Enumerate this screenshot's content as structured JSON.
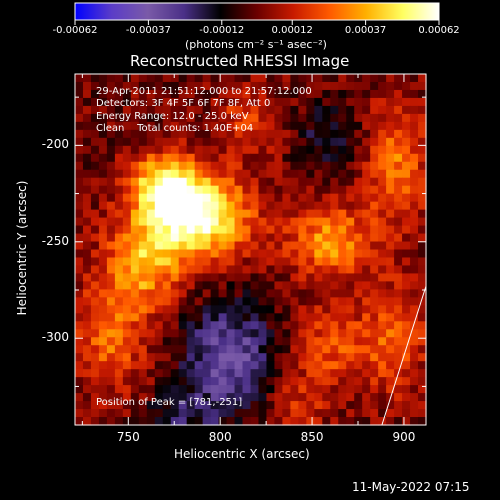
{
  "colorbar": {
    "tick_labels": [
      "-0.00062",
      "-0.00037",
      "-0.00012",
      "0.00012",
      "0.00037",
      "0.00062"
    ],
    "tick_values": [
      -0.00062,
      -0.00037,
      -0.00012,
      0.00012,
      0.00037,
      0.00062
    ],
    "unit_label": "(photons cm⁻² s⁻¹ asec⁻²)",
    "colors": [
      "#0000ff",
      "#5a3cc8",
      "#7a5aa8",
      "#4a2f87",
      "#000000",
      "#6b0000",
      "#c81a00",
      "#ff5a00",
      "#ffb000",
      "#ffff60",
      "#ffffff"
    ]
  },
  "chart_data": {
    "type": "heatmap",
    "title": "Reconstructed RHESSI Image",
    "xlabel": "Heliocentric X (arcsec)",
    "ylabel": "Heliocentric Y (arcsec)",
    "xlim": [
      721,
      912
    ],
    "ylim": [
      -345,
      -163
    ],
    "x_ticks": [
      750,
      800,
      850,
      900
    ],
    "y_ticks": [
      -200,
      -250,
      -300
    ],
    "x_tick_labels": [
      "750",
      "800",
      "850",
      "900"
    ],
    "y_tick_labels": [
      "-200",
      "-250",
      "-300"
    ],
    "annotations": [
      "29-Apr-2011 21:51:12.000 to 21:57:12.000",
      "Detectors: 3F 4F 5F 6F 7F 8F, Att 0",
      "Energy Range: 12.0 - 25.0 keV",
      "Clean    Total counts: 1.40E+04"
    ],
    "peak_label": "Position of Peak = [781,-251]",
    "peak": [
      781,
      -251
    ],
    "limb_line": [
      [
        888,
        -345
      ],
      [
        912,
        -273
      ]
    ],
    "sources": [
      {
        "x": 787,
        "y": -237,
        "sx": 20,
        "sy": 15,
        "a": 1.0
      },
      {
        "x": 770,
        "y": -220,
        "sx": 13,
        "sy": 11,
        "a": 0.7
      },
      {
        "x": 758,
        "y": -262,
        "sx": 15,
        "sy": 16,
        "a": 0.55
      },
      {
        "x": 740,
        "y": -300,
        "sx": 15,
        "sy": 20,
        "a": 0.4
      },
      {
        "x": 815,
        "y": -188,
        "sx": 12,
        "sy": 12,
        "a": 0.3
      },
      {
        "x": 860,
        "y": -250,
        "sx": 16,
        "sy": 13,
        "a": 0.55
      },
      {
        "x": 895,
        "y": -210,
        "sx": 12,
        "sy": 22,
        "a": 0.45
      },
      {
        "x": 860,
        "y": -305,
        "sx": 15,
        "sy": 15,
        "a": 0.35
      },
      {
        "x": 840,
        "y": -335,
        "sx": 12,
        "sy": 10,
        "a": 0.25
      },
      {
        "x": 895,
        "y": -300,
        "sx": 12,
        "sy": 20,
        "a": 0.4
      },
      {
        "x": 805,
        "y": -310,
        "sx": 18,
        "sy": 20,
        "a": -0.55
      },
      {
        "x": 860,
        "y": -195,
        "sx": 12,
        "sy": 12,
        "a": -0.3
      },
      {
        "x": 780,
        "y": -340,
        "sx": 15,
        "sy": 10,
        "a": -0.25
      }
    ]
  },
  "footer": {
    "timestamp": "11-May-2022 07:15"
  }
}
